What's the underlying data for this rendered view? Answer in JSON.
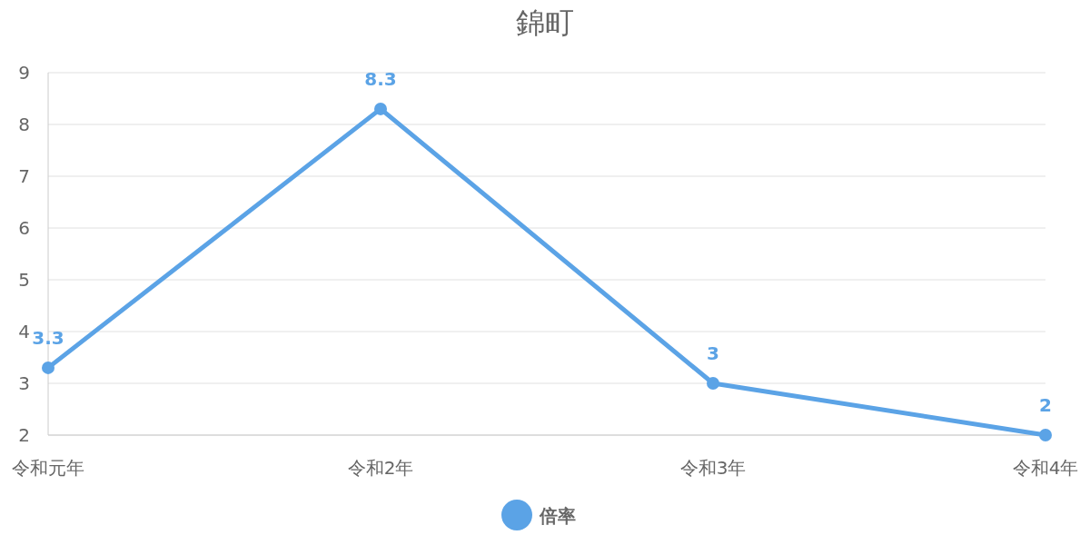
{
  "chart_data": {
    "type": "line",
    "title": "錦町",
    "categories": [
      "令和元年",
      "令和2年",
      "令和3年",
      "令和4年"
    ],
    "series": [
      {
        "name": "倍率",
        "color": "#5ba3e6",
        "values": [
          3.3,
          8.3,
          3,
          2
        ]
      }
    ],
    "ylim": [
      2,
      9
    ],
    "yticks": [
      2,
      3,
      4,
      5,
      6,
      7,
      8,
      9
    ],
    "grid": "y",
    "legend": "bottom",
    "marker": "circle",
    "data_labels": true
  }
}
